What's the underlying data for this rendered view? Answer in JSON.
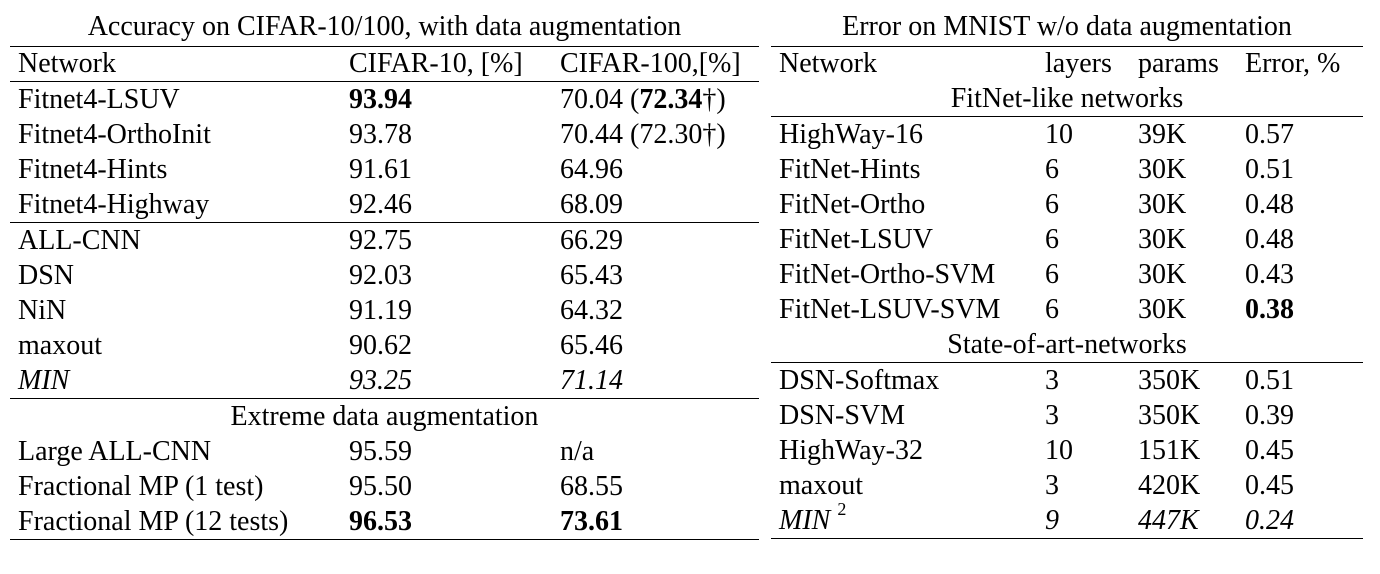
{
  "left": {
    "caption": "Accuracy on CIFAR-10/100, with data augmentation",
    "headers": [
      "Network",
      "CIFAR-10, [%]",
      "CIFAR-100,[%]"
    ],
    "groups": [
      {
        "title": "",
        "rows": [
          {
            "network": "Fitnet4-LSUV",
            "cifar10": "93.94",
            "cifar10_bold": true,
            "c100_main": "70.04 (",
            "c100_paren": "72.34",
            "c100_paren_bold": true,
            "c100_tail": "†)"
          },
          {
            "network": "Fitnet4-OrthoInit",
            "cifar10": "93.78",
            "c100_main": "70.44 (",
            "c100_paren": "72.30",
            "c100_tail": "†)"
          },
          {
            "network": "Fitnet4-Hints",
            "cifar10": "91.61",
            "c100_main": "64.96"
          },
          {
            "network": "Fitnet4-Highway",
            "cifar10": "92.46",
            "c100_main": "68.09"
          }
        ]
      },
      {
        "title": "",
        "rows": [
          {
            "network": "ALL-CNN",
            "cifar10": "92.75",
            "c100_main": "66.29"
          },
          {
            "network": "DSN",
            "cifar10": "92.03",
            "c100_main": "65.43"
          },
          {
            "network": "NiN",
            "cifar10": "91.19",
            "c100_main": "64.32"
          },
          {
            "network": "maxout",
            "cifar10": "90.62",
            "c100_main": "65.46"
          },
          {
            "network": "MIN",
            "cifar10": "93.25",
            "c100_main": "71.14",
            "italic": true
          }
        ]
      },
      {
        "title": "Extreme data augmentation",
        "rows": [
          {
            "network": "Large ALL-CNN",
            "cifar10": "95.59",
            "c100_main": "n/a"
          },
          {
            "network": "Fractional MP (1 test)",
            "cifar10": "95.50",
            "c100_main": "68.55"
          },
          {
            "network": "Fractional MP (12 tests)",
            "cifar10": "96.53",
            "cifar10_bold": true,
            "c100_main": "73.61",
            "c100_bold": true
          }
        ]
      }
    ]
  },
  "right": {
    "caption": "Error on MNIST w/o data augmentation",
    "headers": [
      "Network",
      "layers",
      "params",
      "Error, %"
    ],
    "groups": [
      {
        "title": "FitNet-like networks",
        "rows": [
          {
            "network": "HighWay-16",
            "layers": "10",
            "params": "39K",
            "error": "0.57"
          },
          {
            "network": "FitNet-Hints",
            "layers": "6",
            "params": "30K",
            "error": "0.51"
          },
          {
            "network": "FitNet-Ortho",
            "layers": "6",
            "params": "30K",
            "error": "0.48"
          },
          {
            "network": "FitNet-LSUV",
            "layers": "6",
            "params": "30K",
            "error": "0.48"
          },
          {
            "network": "FitNet-Ortho-SVM",
            "layers": "6",
            "params": "30K",
            "error": "0.43"
          },
          {
            "network": "FitNet-LSUV-SVM",
            "layers": "6",
            "params": "30K",
            "error": "0.38",
            "error_bold": true
          }
        ]
      },
      {
        "title": "State-of-art-networks",
        "rows": [
          {
            "network": "DSN-Softmax",
            "layers": "3",
            "params": "350K",
            "error": "0.51"
          },
          {
            "network": "DSN-SVM",
            "layers": "3",
            "params": "350K",
            "error": "0.39"
          },
          {
            "network": "HighWay-32",
            "layers": "10",
            "params": "151K",
            "error": "0.45"
          },
          {
            "network": "maxout",
            "layers": "3",
            "params": "420K",
            "error": "0.45"
          },
          {
            "network": "MIN",
            "network_sup": "2",
            "layers": "9",
            "params": "447K",
            "error": "0.24",
            "italic": true
          }
        ]
      }
    ]
  }
}
